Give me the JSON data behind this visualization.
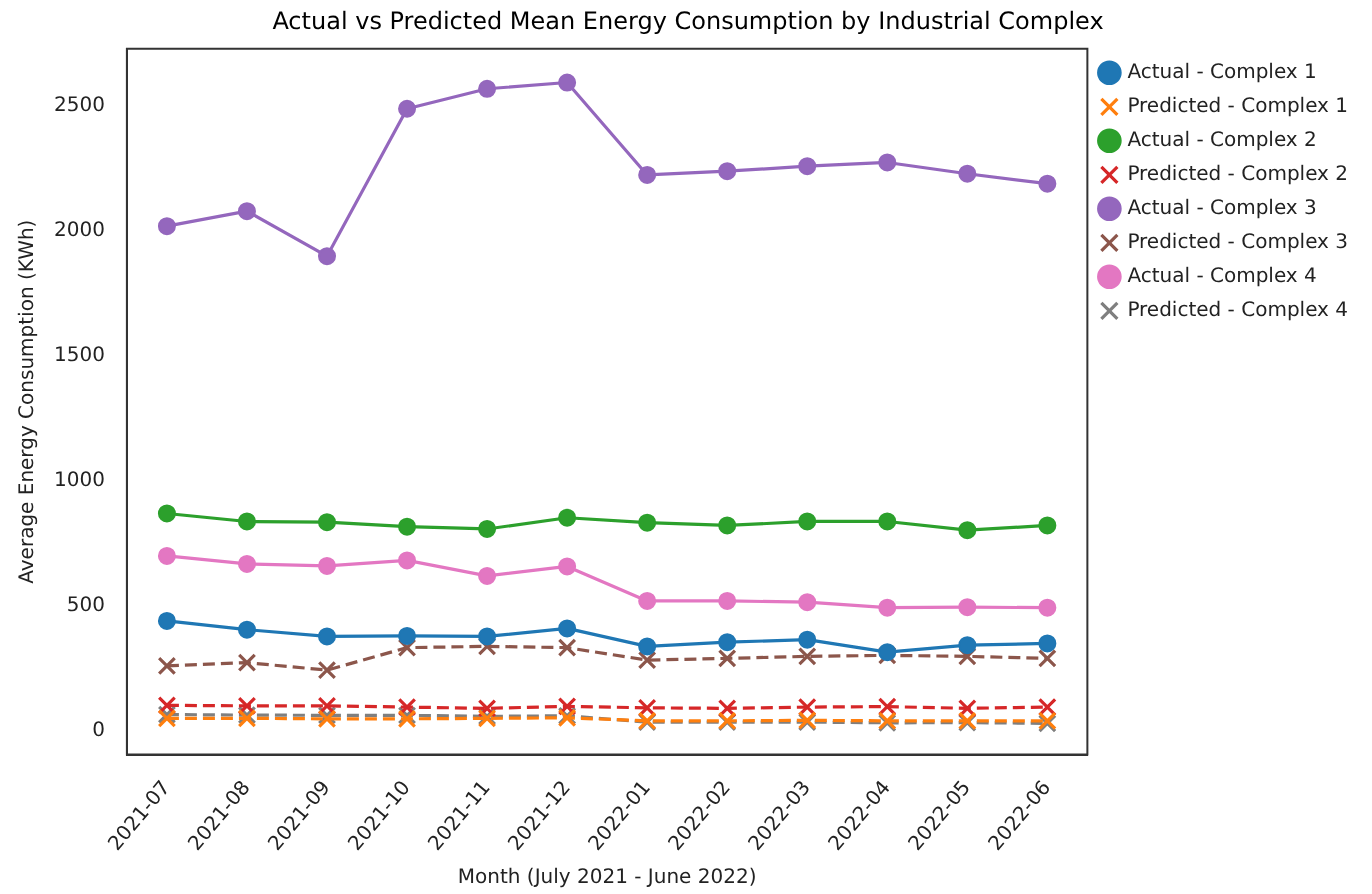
{
  "chart_data": {
    "type": "line",
    "title": "Actual vs Predicted Mean Energy Consumption by Industrial Complex",
    "xlabel": "Month (July 2021 - June 2022)",
    "ylabel": "Average Energy Consumption (KWh)",
    "categories": [
      "2021-07",
      "2021-08",
      "2021-09",
      "2021-10",
      "2021-11",
      "2021-12",
      "2022-01",
      "2022-02",
      "2022-03",
      "2022-04",
      "2022-05",
      "2022-06"
    ],
    "ylim": [
      -95,
      2730
    ],
    "yticks": [
      0,
      500,
      1000,
      1500,
      2000,
      2500
    ],
    "grid": false,
    "legend": "right",
    "series": [
      {
        "name": "Actual - Complex 1",
        "color": "#1f77b4",
        "marker": "circle",
        "line_style": "solid",
        "values": [
          440,
          405,
          378,
          380,
          378,
          410,
          338,
          355,
          365,
          315,
          343,
          350
        ]
      },
      {
        "name": "Predicted - Complex 1",
        "color": "#ff7f0e",
        "marker": "cross",
        "line_style": "dashed",
        "values": [
          50,
          50,
          48,
          48,
          50,
          52,
          40,
          40,
          42,
          40,
          40,
          40
        ]
      },
      {
        "name": "Actual - Complex 2",
        "color": "#2ca02c",
        "marker": "circle",
        "line_style": "solid",
        "values": [
          870,
          838,
          835,
          817,
          808,
          853,
          833,
          822,
          838,
          838,
          803,
          822
        ]
      },
      {
        "name": "Predicted - Complex 2",
        "color": "#d62728",
        "marker": "cross",
        "line_style": "dashed",
        "values": [
          102,
          100,
          100,
          95,
          90,
          98,
          92,
          90,
          95,
          97,
          90,
          95
        ]
      },
      {
        "name": "Actual - Complex 3",
        "color": "#9467bd",
        "marker": "circle",
        "line_style": "solid",
        "values": [
          2020,
          2080,
          1900,
          2490,
          2570,
          2595,
          2225,
          2240,
          2260,
          2275,
          2230,
          2190
        ]
      },
      {
        "name": "Predicted - Complex 3",
        "color": "#8c564b",
        "marker": "cross",
        "line_style": "dashed",
        "values": [
          260,
          273,
          243,
          333,
          338,
          333,
          283,
          290,
          298,
          302,
          298,
          290
        ]
      },
      {
        "name": "Actual - Complex 4",
        "color": "#e377c2",
        "marker": "circle",
        "line_style": "solid",
        "values": [
          700,
          668,
          660,
          682,
          620,
          658,
          520,
          520,
          515,
          493,
          495,
          493
        ]
      },
      {
        "name": "Predicted - Complex 4",
        "color": "#7f7f7f",
        "marker": "cross",
        "line_style": "dashed",
        "values": [
          65,
          63,
          62,
          62,
          58,
          60,
          35,
          35,
          35,
          32,
          33,
          30
        ]
      }
    ]
  }
}
